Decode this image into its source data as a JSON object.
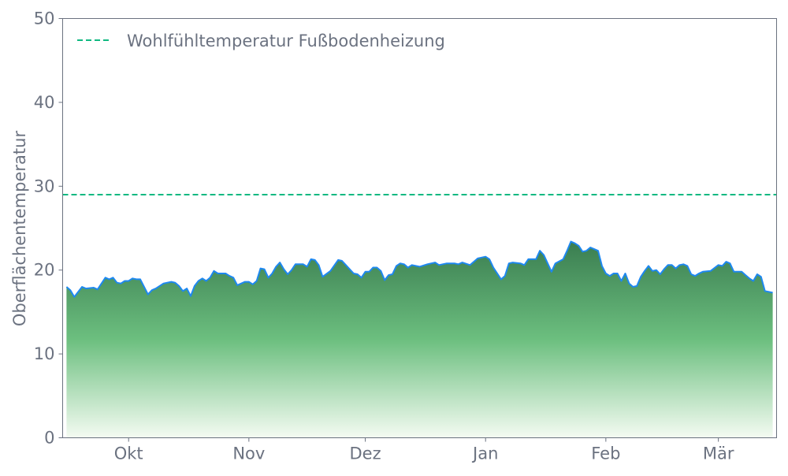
{
  "chart_data": {
    "type": "area",
    "title": "",
    "xlabel": "",
    "ylabel": "Oberflächentemperatur",
    "ylim": [
      0,
      50
    ],
    "xlim": [
      "2023-09-14",
      "2024-03-16"
    ],
    "yticks": [
      0,
      10,
      20,
      30,
      40,
      50
    ],
    "xticks": [
      {
        "date": "2023-10-01",
        "label": "Okt"
      },
      {
        "date": "2023-11-01",
        "label": "Nov"
      },
      {
        "date": "2023-12-01",
        "label": "Dez"
      },
      {
        "date": "2024-01-01",
        "label": "Jan"
      },
      {
        "date": "2024-02-01",
        "label": "Feb"
      },
      {
        "date": "2024-03-01",
        "label": "Mär"
      }
    ],
    "grid": false,
    "legend": {
      "placement": "top-left",
      "entries": [
        "Wohlfühltemperatur Fußbodenheizung"
      ]
    },
    "reference_line": {
      "name": "Wohlfühltemperatur Fußbodenheizung",
      "y": 29,
      "style": "dashed",
      "color": "#10b981"
    },
    "series": [
      {
        "line_color": "#1e88f0",
        "fill_top_color": "#3a7d50",
        "fill_mid_color": "#6cbf7f",
        "fill_bottom_color": "#f4fbf2",
        "points": [
          [
            "2023-09-15",
            18.0
          ],
          [
            "2023-09-16",
            17.6
          ],
          [
            "2023-09-17",
            16.8
          ],
          [
            "2023-09-19",
            18.0
          ],
          [
            "2023-09-20",
            17.8
          ],
          [
            "2023-09-22",
            17.9
          ],
          [
            "2023-09-23",
            17.7
          ],
          [
            "2023-09-25",
            19.1
          ],
          [
            "2023-09-26",
            18.9
          ],
          [
            "2023-09-27",
            19.1
          ],
          [
            "2023-09-28",
            18.5
          ],
          [
            "2023-09-29",
            18.4
          ],
          [
            "2023-09-30",
            18.7
          ],
          [
            "2023-10-01",
            18.7
          ],
          [
            "2023-10-02",
            19.0
          ],
          [
            "2023-10-03",
            18.9
          ],
          [
            "2023-10-04",
            18.9
          ],
          [
            "2023-10-06",
            17.1
          ],
          [
            "2023-10-07",
            17.6
          ],
          [
            "2023-10-08",
            17.8
          ],
          [
            "2023-10-10",
            18.4
          ],
          [
            "2023-10-12",
            18.6
          ],
          [
            "2023-10-13",
            18.5
          ],
          [
            "2023-10-14",
            18.1
          ],
          [
            "2023-10-15",
            17.5
          ],
          [
            "2023-10-16",
            17.8
          ],
          [
            "2023-10-17",
            16.9
          ],
          [
            "2023-10-18",
            18.1
          ],
          [
            "2023-10-19",
            18.7
          ],
          [
            "2023-10-20",
            19.0
          ],
          [
            "2023-10-21",
            18.7
          ],
          [
            "2023-10-22",
            19.1
          ],
          [
            "2023-10-23",
            19.9
          ],
          [
            "2023-10-24",
            19.6
          ],
          [
            "2023-10-26",
            19.6
          ],
          [
            "2023-10-27",
            19.3
          ],
          [
            "2023-10-28",
            19.1
          ],
          [
            "2023-10-29",
            18.2
          ],
          [
            "2023-10-31",
            18.6
          ],
          [
            "2023-11-01",
            18.6
          ],
          [
            "2023-11-02",
            18.3
          ],
          [
            "2023-11-03",
            18.7
          ],
          [
            "2023-11-04",
            20.2
          ],
          [
            "2023-11-05",
            20.1
          ],
          [
            "2023-11-06",
            19.1
          ],
          [
            "2023-11-07",
            19.6
          ],
          [
            "2023-11-08",
            20.4
          ],
          [
            "2023-11-09",
            20.9
          ],
          [
            "2023-11-10",
            20.1
          ],
          [
            "2023-11-11",
            19.5
          ],
          [
            "2023-11-12",
            20.0
          ],
          [
            "2023-11-13",
            20.7
          ],
          [
            "2023-11-15",
            20.7
          ],
          [
            "2023-11-16",
            20.4
          ],
          [
            "2023-11-17",
            21.3
          ],
          [
            "2023-11-18",
            21.2
          ],
          [
            "2023-11-19",
            20.6
          ],
          [
            "2023-11-20",
            19.2
          ],
          [
            "2023-11-22",
            19.9
          ],
          [
            "2023-11-24",
            21.2
          ],
          [
            "2023-11-25",
            21.1
          ],
          [
            "2023-11-26",
            20.6
          ],
          [
            "2023-11-28",
            19.6
          ],
          [
            "2023-11-29",
            19.5
          ],
          [
            "2023-11-30",
            19.1
          ],
          [
            "2023-12-01",
            19.8
          ],
          [
            "2023-12-02",
            19.8
          ],
          [
            "2023-12-03",
            20.3
          ],
          [
            "2023-12-04",
            20.3
          ],
          [
            "2023-12-05",
            19.9
          ],
          [
            "2023-12-06",
            18.8
          ],
          [
            "2023-12-07",
            19.4
          ],
          [
            "2023-12-08",
            19.5
          ],
          [
            "2023-12-09",
            20.5
          ],
          [
            "2023-12-10",
            20.8
          ],
          [
            "2023-12-11",
            20.7
          ],
          [
            "2023-12-12",
            20.3
          ],
          [
            "2023-12-13",
            20.6
          ],
          [
            "2023-12-15",
            20.4
          ],
          [
            "2023-12-17",
            20.7
          ],
          [
            "2023-12-19",
            20.9
          ],
          [
            "2023-12-20",
            20.6
          ],
          [
            "2023-12-22",
            20.8
          ],
          [
            "2023-12-24",
            20.8
          ],
          [
            "2023-12-25",
            20.7
          ],
          [
            "2023-12-26",
            20.9
          ],
          [
            "2023-12-28",
            20.6
          ],
          [
            "2023-12-30",
            21.4
          ],
          [
            "2024-01-01",
            21.6
          ],
          [
            "2024-01-02",
            21.3
          ],
          [
            "2024-01-03",
            20.3
          ],
          [
            "2024-01-05",
            18.9
          ],
          [
            "2024-01-06",
            19.3
          ],
          [
            "2024-01-07",
            20.8
          ],
          [
            "2024-01-08",
            20.9
          ],
          [
            "2024-01-10",
            20.8
          ],
          [
            "2024-01-11",
            20.6
          ],
          [
            "2024-01-12",
            21.3
          ],
          [
            "2024-01-14",
            21.3
          ],
          [
            "2024-01-15",
            22.3
          ],
          [
            "2024-01-16",
            21.8
          ],
          [
            "2024-01-17",
            20.8
          ],
          [
            "2024-01-18",
            19.8
          ],
          [
            "2024-01-19",
            20.8
          ],
          [
            "2024-01-21",
            21.3
          ],
          [
            "2024-01-22",
            22.3
          ],
          [
            "2024-01-23",
            23.4
          ],
          [
            "2024-01-24",
            23.2
          ],
          [
            "2024-01-25",
            22.9
          ],
          [
            "2024-01-26",
            22.2
          ],
          [
            "2024-01-27",
            22.3
          ],
          [
            "2024-01-28",
            22.7
          ],
          [
            "2024-01-29",
            22.5
          ],
          [
            "2024-01-30",
            22.3
          ],
          [
            "2024-01-31",
            20.5
          ],
          [
            "2024-02-01",
            19.6
          ],
          [
            "2024-02-02",
            19.3
          ],
          [
            "2024-02-03",
            19.6
          ],
          [
            "2024-02-04",
            19.6
          ],
          [
            "2024-02-05",
            18.7
          ],
          [
            "2024-02-06",
            19.6
          ],
          [
            "2024-02-07",
            18.4
          ],
          [
            "2024-02-08",
            18.0
          ],
          [
            "2024-02-09",
            18.1
          ],
          [
            "2024-02-10",
            19.2
          ],
          [
            "2024-02-11",
            19.9
          ],
          [
            "2024-02-12",
            20.5
          ],
          [
            "2024-02-13",
            19.9
          ],
          [
            "2024-02-14",
            20.0
          ],
          [
            "2024-02-15",
            19.5
          ],
          [
            "2024-02-16",
            20.1
          ],
          [
            "2024-02-17",
            20.6
          ],
          [
            "2024-02-18",
            20.6
          ],
          [
            "2024-02-19",
            20.2
          ],
          [
            "2024-02-20",
            20.6
          ],
          [
            "2024-02-21",
            20.7
          ],
          [
            "2024-02-22",
            20.5
          ],
          [
            "2024-02-23",
            19.5
          ],
          [
            "2024-02-24",
            19.3
          ],
          [
            "2024-02-25",
            19.6
          ],
          [
            "2024-02-26",
            19.8
          ],
          [
            "2024-02-28",
            19.9
          ],
          [
            "2024-03-01",
            20.6
          ],
          [
            "2024-03-02",
            20.5
          ],
          [
            "2024-03-03",
            21.0
          ],
          [
            "2024-03-04",
            20.8
          ],
          [
            "2024-03-05",
            19.8
          ],
          [
            "2024-03-07",
            19.8
          ],
          [
            "2024-03-08",
            19.4
          ],
          [
            "2024-03-09",
            19.0
          ],
          [
            "2024-03-10",
            18.7
          ],
          [
            "2024-03-11",
            19.5
          ],
          [
            "2024-03-12",
            19.2
          ],
          [
            "2024-03-13",
            17.5
          ],
          [
            "2024-03-14",
            17.4
          ],
          [
            "2024-03-15",
            17.3
          ]
        ]
      }
    ]
  }
}
